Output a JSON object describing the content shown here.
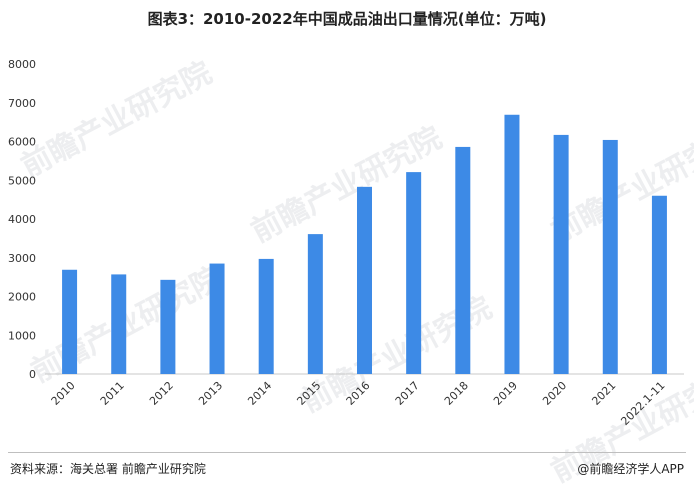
{
  "title": "图表3：2010-2022年中国成品油出口量情况(单位：万吨)",
  "source": "资料来源：海关总署 前瞻产业研究院",
  "brand": "@前瞻经济学人APP",
  "watermark": "前瞻产业研究院",
  "chart_data": {
    "type": "bar",
    "title": "图表3：2010-2022年中国成品油出口量情况(单位：万吨)",
    "categories": [
      "2010",
      "2011",
      "2012",
      "2013",
      "2014",
      "2015",
      "2016",
      "2017",
      "2018",
      "2019",
      "2020",
      "2021",
      "2022.1-11"
    ],
    "values": [
      2690,
      2570,
      2430,
      2850,
      2970,
      3610,
      4830,
      5210,
      5860,
      6690,
      6170,
      6040,
      4600
    ],
    "ylim": [
      0,
      8000
    ],
    "yticks": [
      0,
      1000,
      2000,
      3000,
      4000,
      5000,
      6000,
      7000,
      8000
    ],
    "bar_color": "#3d8ae6",
    "grid": false,
    "legend": "none",
    "xlabel": "",
    "ylabel": ""
  }
}
